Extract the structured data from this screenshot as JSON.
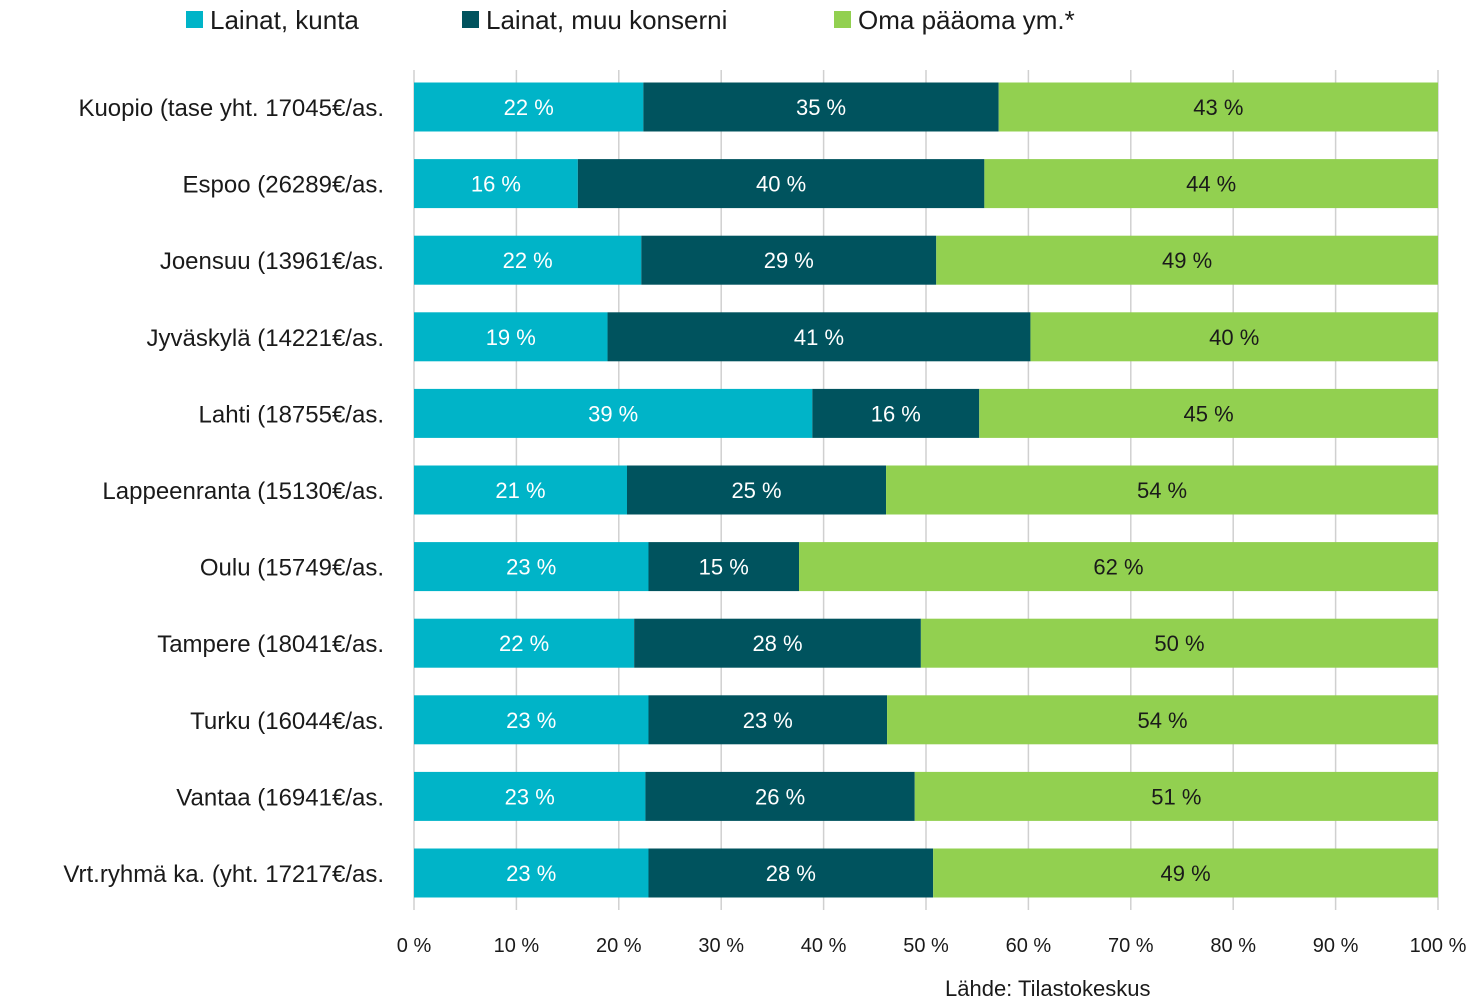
{
  "chart_data": {
    "type": "bar",
    "orientation": "horizontal",
    "stacked": "percent",
    "legend_position": "top",
    "grid": true,
    "xlim": [
      0,
      100
    ],
    "x_ticks": [
      "0 %",
      "10 %",
      "20 %",
      "30 %",
      "40 %",
      "50 %",
      "60 %",
      "70 %",
      "80 %",
      "90 %",
      "100 %"
    ],
    "categories": [
      "Kuopio (tase yht. 17045€/as.",
      "Espoo (26289€/as.",
      "Joensuu (13961€/as.",
      "Jyväskylä (14221€/as.",
      "Lahti (18755€/as.",
      "Lappeenranta (15130€/as.",
      "Oulu (15749€/as.",
      "Tampere (18041€/as.",
      "Turku (16044€/as.",
      "Vantaa (16941€/as.",
      "Vrt.ryhmä ka. (yht. 17217€/as."
    ],
    "series": [
      {
        "name": "Lainat, kunta",
        "color": "#00b4c8",
        "label_color": "#ffffff",
        "values": [
          22.4,
          16.0,
          22.2,
          18.9,
          38.9,
          20.8,
          22.9,
          21.5,
          22.9,
          22.6,
          22.9
        ],
        "labels": [
          "22 %",
          "16 %",
          "22 %",
          "19 %",
          "39 %",
          "21 %",
          "23 %",
          "22 %",
          "23 %",
          "23 %",
          "23 %"
        ]
      },
      {
        "name": "Lainat, muu konserni",
        "color": "#00535e",
        "label_color": "#ffffff",
        "values": [
          34.7,
          39.7,
          28.8,
          41.3,
          16.3,
          25.3,
          14.7,
          28.0,
          23.3,
          26.3,
          27.8
        ],
        "labels": [
          "35 %",
          "40 %",
          "29 %",
          "41 %",
          "16 %",
          "25 %",
          "15 %",
          "28 %",
          "23 %",
          "26 %",
          "28 %"
        ]
      },
      {
        "name": "Oma pääoma ym.*",
        "color": "#92d050",
        "label_color": "#1a1a1a",
        "values": [
          42.9,
          44.3,
          49.0,
          39.8,
          44.8,
          53.9,
          62.4,
          50.5,
          53.8,
          51.1,
          49.3
        ],
        "labels": [
          "43 %",
          "44 %",
          "49 %",
          "40 %",
          "45 %",
          "54 %",
          "62 %",
          "50 %",
          "54 %",
          "51 %",
          "49 %"
        ]
      }
    ],
    "source_note": "Lähde: Tilastokeskus",
    "grid_color": "#d0d0d0"
  }
}
